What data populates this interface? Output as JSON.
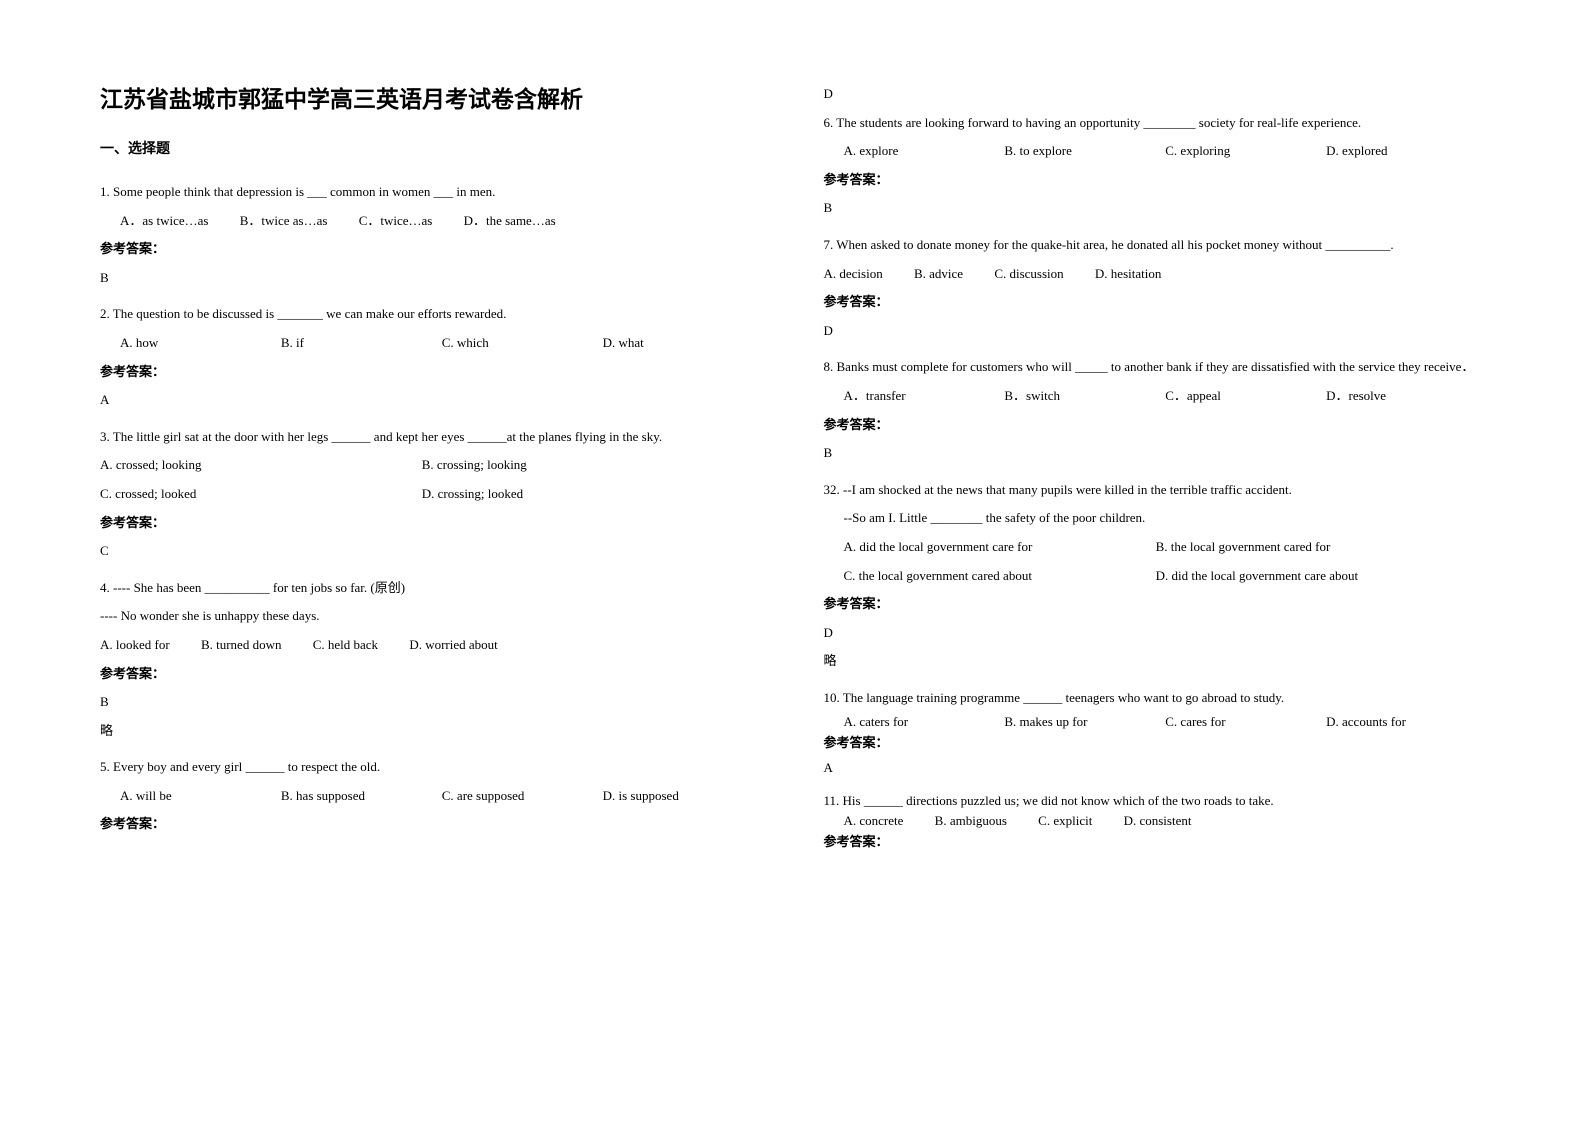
{
  "title": "江苏省盐城市郭猛中学高三英语月考试卷含解析",
  "section": "一、选择题",
  "answerLabel": "参考答案：",
  "colors": {
    "text": "#000000",
    "background": "#ffffff"
  },
  "typography": {
    "body_fontsize_pt": 10,
    "title_fontsize_pt": 17,
    "line_height": 2.2
  },
  "q1": {
    "stem": "1. Some people think that depression is ___ common in women ___ in men.",
    "a": "A．as twice…as",
    "b": "B．twice as…as",
    "c": "C．twice…as",
    "d": "D．the same…as",
    "ans": "B"
  },
  "q2": {
    "stem": "2. The question to be discussed is _______ we can make our efforts rewarded.",
    "a": "A. how",
    "b": "B. if",
    "c": "C. which",
    "d": "D. what",
    "ans": "A"
  },
  "q3": {
    "stem": "3. The little girl sat at the door with her legs ______ and kept her eyes ______at the planes flying in the sky.",
    "a": "A. crossed; looking",
    "b": "B. crossing; looking",
    "c": "C. crossed; looked",
    "d": "D. crossing; looked",
    "ans": "C"
  },
  "q4": {
    "stem": "4. ---- She has been __________ for ten jobs so far.  (原创)",
    "stem2": "---- No wonder she is unhappy these days.",
    "a": "A. looked for",
    "b": "B. turned down",
    "c": "C. held back",
    "d": "D. worried about",
    "ans": "B",
    "extra": "略"
  },
  "q5": {
    "stem": "5. Every boy and every girl ______ to respect the old.",
    "a": "A. will be",
    "b": "B. has supposed",
    "c": "C. are supposed",
    "d": "D. is supposed",
    "ans": "D"
  },
  "q6": {
    "stem": "6. The students are looking forward to having an opportunity ________ society for real-life experience.",
    "a": "A. explore",
    "b": "B. to explore",
    "c": "C. exploring",
    "d": "D. explored",
    "ans": "B"
  },
  "q7": {
    "stem": "7. When asked to donate money for the quake-hit area, he donated all his pocket money without __________.",
    "a": "A. decision",
    "b": "B. advice",
    "c": "C. discussion",
    "d": "D. hesitation",
    "ans": "D"
  },
  "q8": {
    "stem": "8. Banks must complete for customers who will _____ to another bank if they are dissatisfied with the service they receive．",
    "a": "A．transfer",
    "b": "B．switch",
    "c": "C．appeal",
    "d": "D．resolve",
    "ans": "B"
  },
  "q9": {
    "stem": "32. --I am shocked at the news that many pupils were killed in the terrible traffic accident.",
    "stem2": "--So am I. Little ________ the safety of the poor children.",
    "a": "A. did the local government care for",
    "b": "B. the local government cared for",
    "c": "C. the local government cared about",
    "d": "D. did the local government care about",
    "ans": "D",
    "extra": "略"
  },
  "q10": {
    "stem": "10. The language training programme ______ teenagers who want to go abroad to study.",
    "a": "A. caters for",
    "b": "B. makes up for",
    "c": "C. cares for",
    "d": "D. accounts for",
    "ans": "A"
  },
  "q11": {
    "stem": "11. His ______ directions puzzled us; we did not know which of the two roads to take.",
    "a": "A. concrete",
    "b": "B. ambiguous",
    "c": "C. explicit",
    "d": "D. consistent"
  }
}
